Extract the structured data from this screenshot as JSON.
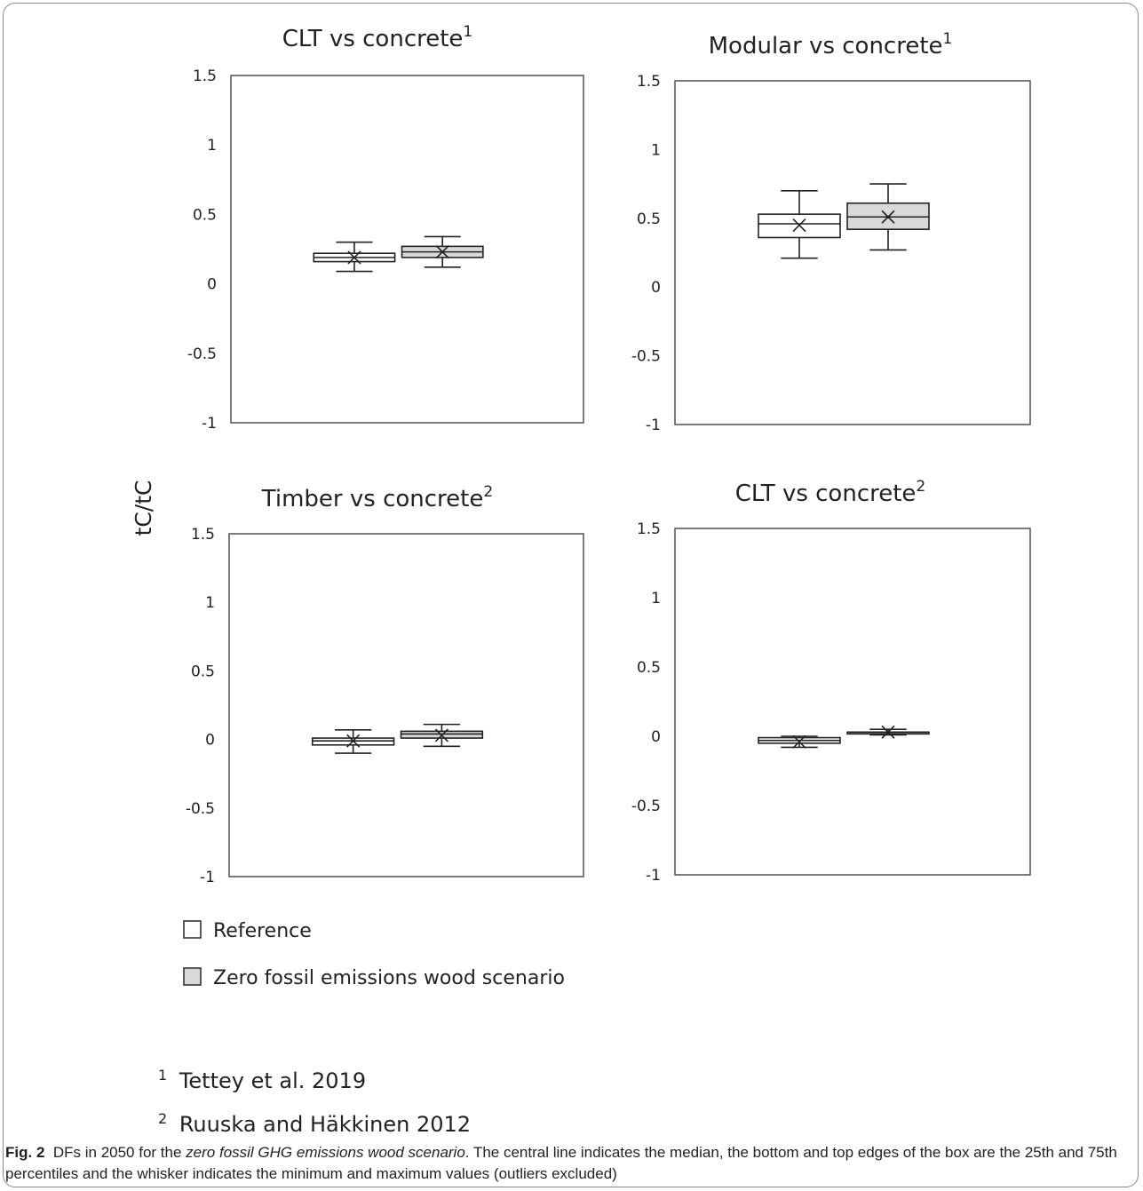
{
  "chart_data": [
    {
      "type": "box",
      "title": "CLT vs concrete",
      "title_sup": "1",
      "ylim": [
        -1,
        1.5
      ],
      "yticks": [
        "1.5",
        "1",
        "0.5",
        "0",
        "-0.5",
        "-1"
      ],
      "boxes": [
        {
          "series": "Reference",
          "min": 0.09,
          "q1": 0.16,
          "median": 0.19,
          "mean": 0.19,
          "q3": 0.22,
          "max": 0.3
        },
        {
          "series": "Zero fossil emissions wood scenario",
          "min": 0.12,
          "q1": 0.19,
          "median": 0.23,
          "mean": 0.23,
          "q3": 0.27,
          "max": 0.34
        }
      ]
    },
    {
      "type": "box",
      "title": "Modular vs concrete",
      "title_sup": "1",
      "ylim": [
        -1,
        1.5
      ],
      "yticks": [
        "1.5",
        "1",
        "0.5",
        "0",
        "-0.5",
        "-1"
      ],
      "boxes": [
        {
          "series": "Reference",
          "min": 0.21,
          "q1": 0.36,
          "median": 0.46,
          "mean": 0.45,
          "q3": 0.53,
          "max": 0.7
        },
        {
          "series": "Zero fossil emissions wood scenario",
          "min": 0.27,
          "q1": 0.42,
          "median": 0.51,
          "mean": 0.51,
          "q3": 0.61,
          "max": 0.75
        }
      ]
    },
    {
      "type": "box",
      "title": "Timber vs concrete",
      "title_sup": "2",
      "ylim": [
        -1,
        1.5
      ],
      "yticks": [
        "1.5",
        "1",
        "0.5",
        "0",
        "-0.5",
        "-1"
      ],
      "boxes": [
        {
          "series": "Reference",
          "min": -0.1,
          "q1": -0.04,
          "median": -0.01,
          "mean": -0.01,
          "q3": 0.01,
          "max": 0.07
        },
        {
          "series": "Zero fossil emissions wood scenario",
          "min": -0.05,
          "q1": 0.01,
          "median": 0.04,
          "mean": 0.03,
          "q3": 0.06,
          "max": 0.11
        }
      ]
    },
    {
      "type": "box",
      "title": "CLT vs concrete",
      "title_sup": "2",
      "ylim": [
        -1,
        1.5
      ],
      "yticks": [
        "1.5",
        "1",
        "0.5",
        "0",
        "-0.5",
        "-1"
      ],
      "boxes": [
        {
          "series": "Reference",
          "min": -0.08,
          "q1": -0.05,
          "median": -0.03,
          "mean": -0.04,
          "q3": -0.01,
          "max": 0.0
        },
        {
          "series": "Zero fossil emissions wood scenario",
          "min": 0.01,
          "q1": 0.02,
          "median": 0.03,
          "mean": 0.03,
          "q3": 0.03,
          "max": 0.05
        }
      ]
    }
  ],
  "ylabel": "tC/tC",
  "legend": [
    {
      "label": "Reference",
      "color": "#ffffff"
    },
    {
      "label": "Zero fossil emissions wood scenario",
      "color": "#d9d9d9"
    }
  ],
  "footnotes": [
    {
      "marker": "1",
      "text": "Tettey et al. 2019"
    },
    {
      "marker": "2",
      "text": "Ruuska and Häkkinen 2012"
    }
  ],
  "caption": {
    "label": "Fig. 2",
    "part1": "DFs in 2050 for the ",
    "italic": "zero fossil GHG emissions wood scenario",
    "part2": ". The central line indicates the median, the bottom and top edges of the box are the 25th and 75th percentiles and the whisker indicates the minimum and maximum values (outliers excluded)"
  }
}
